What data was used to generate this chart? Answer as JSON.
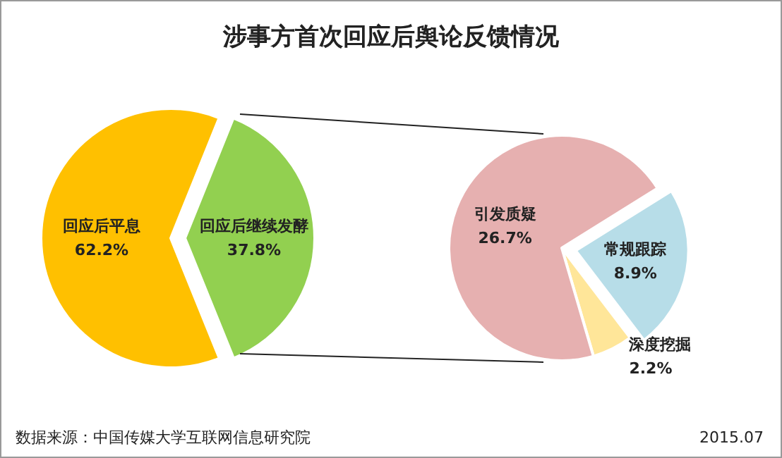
{
  "chart_data": [
    {
      "type": "pie",
      "title": "涉事方首次回应后舆论反馈情况",
      "categories": [
        "回应后平息",
        "回应后继续发酵"
      ],
      "values": [
        62.2,
        37.8
      ],
      "colors": [
        "#ffc000",
        "#92d050"
      ],
      "value_labels": [
        "62.2%",
        "37.8%"
      ],
      "annotations": [
        "数据来源：中国传媒大学互联网信息研究院",
        "2015.07"
      ]
    },
    {
      "type": "pie",
      "categories": [
        "常规跟踪",
        "深度挖掘",
        "引发质疑"
      ],
      "values": [
        8.9,
        2.2,
        26.7
      ],
      "colors": [
        "#b7dde8",
        "#ffe699",
        "#e6b0b0"
      ],
      "value_labels": [
        "8.9%",
        "2.2%",
        "26.7%"
      ]
    }
  ]
}
